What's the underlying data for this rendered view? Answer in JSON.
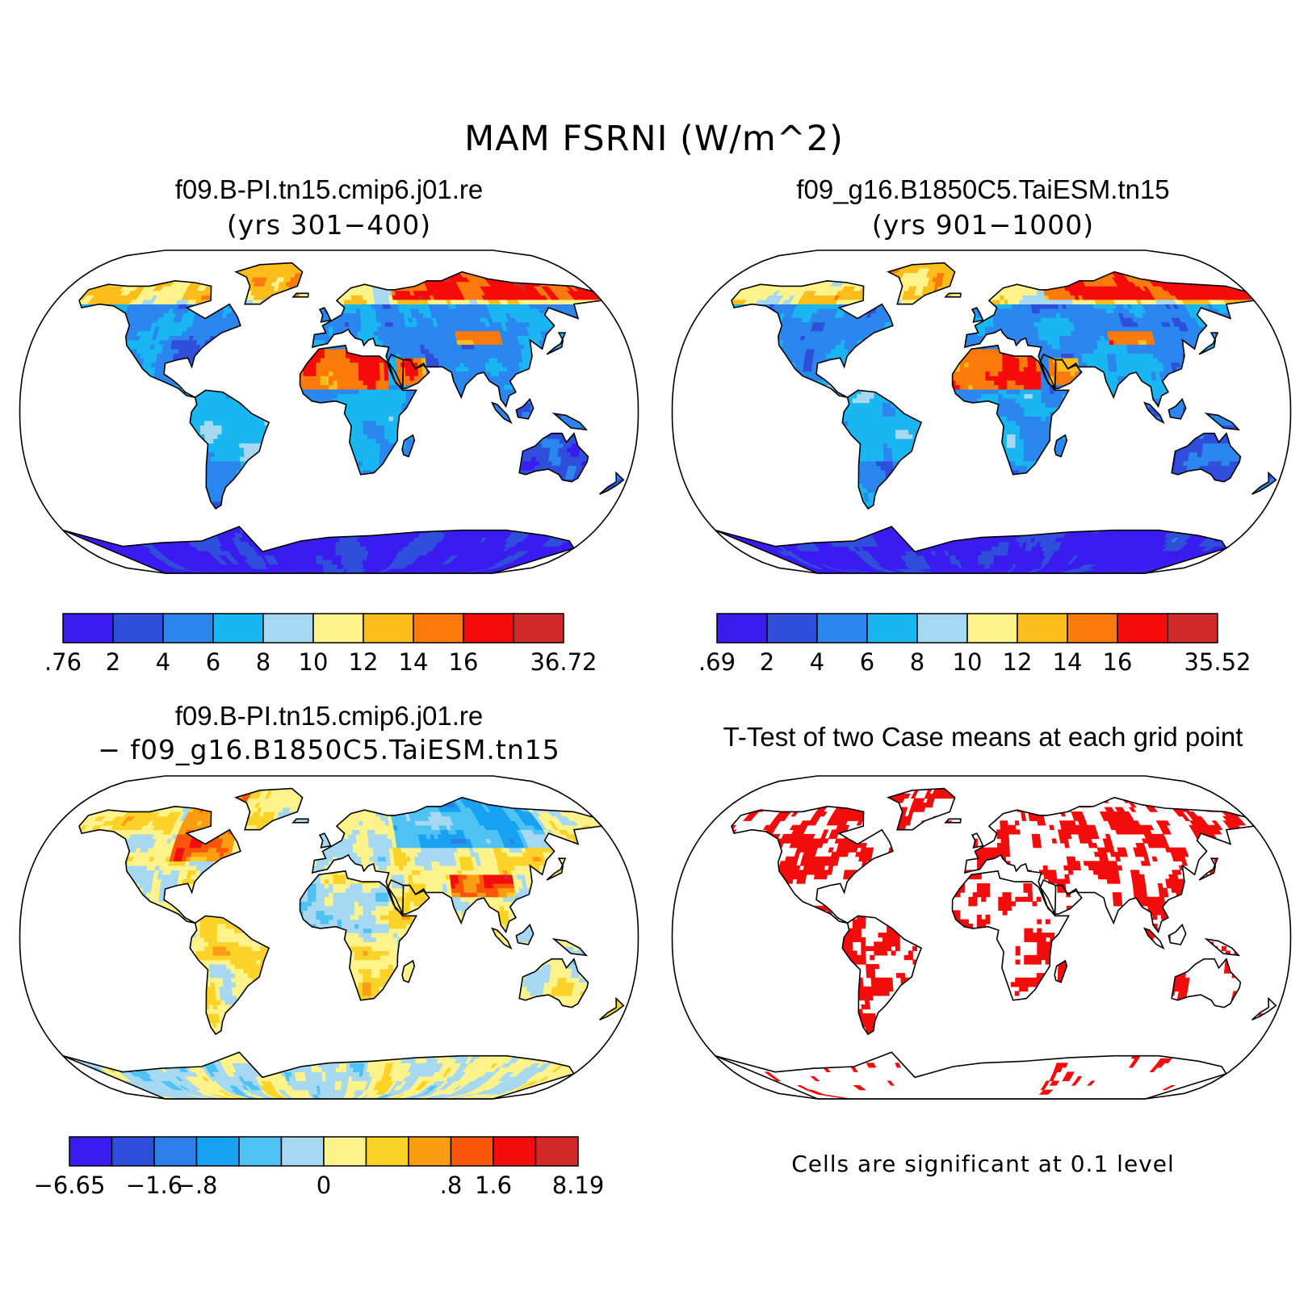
{
  "figure": {
    "title": "MAM FSRNI (W/m^2)"
  },
  "panels": [
    {
      "id": "case1",
      "title": "f09.B-PI.tn15.cmip6.j01.re",
      "subtitle": "(yrs 301−400)",
      "colorbar": {
        "labels": [
          ".76",
          "2",
          "4",
          "6",
          "8",
          "10",
          "12",
          "14",
          "16",
          "36.72"
        ],
        "colors": [
          "#3a1cf0",
          "#2f4edb",
          "#2b86ee",
          "#19b6f2",
          "#a7d8f1",
          "#fdf38a",
          "#fbbd1c",
          "#fa7b0c",
          "#f60b0b",
          "#d22a2a"
        ]
      }
    },
    {
      "id": "case2",
      "title": "f09_g16.B1850C5.TaiESM.tn15",
      "subtitle": "(yrs 901−1000)",
      "colorbar": {
        "labels": [
          ".69",
          "2",
          "4",
          "6",
          "8",
          "10",
          "12",
          "14",
          "16",
          "35.52"
        ],
        "colors": [
          "#3a1cf0",
          "#2f4edb",
          "#2b86ee",
          "#19b6f2",
          "#a7d8f1",
          "#fdf38a",
          "#fbbd1c",
          "#fa7b0c",
          "#f60b0b",
          "#d22a2a"
        ]
      }
    },
    {
      "id": "difference",
      "title": "f09.B-PI.tn15.cmip6.j01.re",
      "subtitle": "− f09_g16.B1850C5.TaiESM.tn15",
      "colorbar": {
        "labels": [
          "−6.65",
          "−1.6",
          "−.8",
          "0",
          ".8",
          "1.6",
          "8.19"
        ],
        "colors": [
          "#3a1cf0",
          "#2f4edb",
          "#2d7ee9",
          "#17a2f2",
          "#4ec3f3",
          "#a7d8f1",
          "#fdf38a",
          "#fbd227",
          "#fb9d12",
          "#f9560a",
          "#f30d0d",
          "#d22a2a"
        ]
      }
    },
    {
      "id": "ttest",
      "title": "T-Test of two Case means at each grid point",
      "note": "Cells are significant at 0.1 level",
      "significant_color": "#f20c0c"
    }
  ]
}
